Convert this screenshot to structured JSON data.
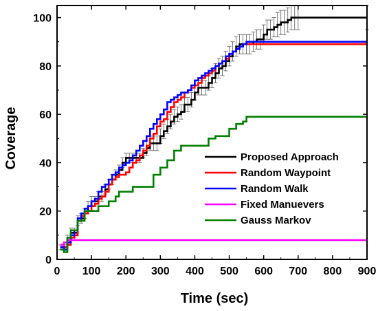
{
  "chart_data": {
    "type": "line",
    "title": "",
    "xlabel": "Time (sec)",
    "ylabel": "Coverage",
    "xlim": [
      0,
      900
    ],
    "ylim": [
      0,
      105
    ],
    "xticks": [
      0,
      100,
      200,
      300,
      400,
      500,
      600,
      700,
      800,
      900
    ],
    "yticks": [
      0,
      20,
      40,
      60,
      80,
      100
    ],
    "xtick_labels": [
      "0",
      "100",
      "200",
      "300",
      "400",
      "500",
      "600",
      "700",
      "800",
      "900"
    ],
    "ytick_labels": [
      "0",
      "20",
      "40",
      "60",
      "80",
      "100"
    ],
    "grid": false,
    "legend_position": "middle-right",
    "series": [
      {
        "name": "Proposed Approach",
        "color": "#000000",
        "error_bars": true,
        "x": [
          10,
          20,
          30,
          40,
          50,
          60,
          70,
          80,
          90,
          100,
          110,
          120,
          130,
          140,
          150,
          160,
          170,
          180,
          190,
          200,
          210,
          220,
          230,
          240,
          250,
          260,
          270,
          280,
          290,
          300,
          310,
          320,
          330,
          340,
          350,
          360,
          370,
          380,
          390,
          400,
          410,
          420,
          430,
          440,
          450,
          460,
          470,
          480,
          490,
          500,
          510,
          520,
          530,
          540,
          550,
          560,
          570,
          580,
          590,
          600,
          610,
          620,
          630,
          640,
          650,
          660,
          670,
          680,
          690,
          700,
          900
        ],
        "y": [
          5,
          5,
          8,
          11,
          11,
          16,
          17,
          19,
          22,
          24,
          24,
          26,
          26,
          29,
          31,
          33,
          35,
          37,
          40,
          42,
          42,
          42,
          42,
          42,
          44,
          46,
          48,
          48,
          48,
          51,
          53,
          55,
          57,
          59,
          60,
          61,
          64,
          64,
          66,
          69,
          71,
          71,
          71,
          73,
          75,
          77,
          79,
          80,
          82,
          84,
          86,
          88,
          89,
          89,
          89,
          89,
          90,
          91,
          91,
          93,
          95,
          95,
          96,
          97,
          98,
          98,
          99,
          100,
          100,
          100,
          100
        ],
        "error": [
          1,
          1,
          2,
          2,
          2,
          2,
          2,
          2,
          2,
          2,
          2,
          2,
          2,
          2,
          2,
          2,
          2,
          2,
          2,
          2,
          2,
          2,
          2,
          2,
          2,
          3,
          3,
          3,
          3,
          3,
          3,
          3,
          3,
          3,
          3,
          3,
          3,
          3,
          3,
          3,
          3,
          3,
          3,
          3,
          4,
          4,
          4,
          4,
          4,
          4,
          4,
          4,
          4,
          4,
          4,
          4,
          4,
          4,
          4,
          4,
          4,
          4,
          4,
          5,
          5,
          5,
          5,
          5,
          5,
          5,
          5
        ]
      },
      {
        "name": "Random Waypoint",
        "color": "#ff0000",
        "x": [
          10,
          20,
          30,
          40,
          50,
          60,
          70,
          80,
          90,
          100,
          110,
          120,
          130,
          140,
          150,
          160,
          170,
          180,
          190,
          200,
          210,
          220,
          230,
          240,
          250,
          260,
          270,
          280,
          290,
          300,
          310,
          320,
          330,
          340,
          350,
          360,
          370,
          380,
          390,
          400,
          410,
          420,
          430,
          440,
          450,
          460,
          470,
          480,
          490,
          500,
          510,
          520,
          530,
          540,
          550,
          900
        ],
        "y": [
          6,
          5,
          6,
          9,
          10,
          16,
          18,
          19,
          20,
          22,
          23,
          25,
          26,
          28,
          31,
          33,
          34,
          35,
          35,
          36,
          38,
          40,
          41,
          43,
          45,
          47,
          50,
          52,
          55,
          57,
          58,
          61,
          63,
          65,
          66,
          67,
          69,
          70,
          71,
          72,
          73,
          75,
          76,
          77,
          78,
          80,
          81,
          82,
          83,
          85,
          86,
          87,
          88,
          89,
          89,
          89
        ]
      },
      {
        "name": "Random Walk",
        "color": "#0000ff",
        "x": [
          10,
          20,
          30,
          40,
          50,
          60,
          70,
          80,
          90,
          100,
          110,
          120,
          130,
          140,
          150,
          160,
          170,
          180,
          190,
          200,
          210,
          220,
          230,
          240,
          250,
          260,
          270,
          280,
          290,
          300,
          310,
          320,
          330,
          340,
          350,
          360,
          370,
          380,
          390,
          400,
          410,
          420,
          430,
          440,
          450,
          460,
          470,
          480,
          490,
          500,
          510,
          520,
          530,
          540,
          550,
          900
        ],
        "y": [
          5,
          4,
          7,
          10,
          12,
          17,
          19,
          21,
          22,
          24,
          25,
          28,
          30,
          31,
          33,
          35,
          36,
          38,
          39,
          40,
          41,
          43,
          45,
          47,
          49,
          51,
          54,
          56,
          58,
          60,
          62,
          65,
          66,
          67,
          68,
          69,
          69,
          70,
          72,
          74,
          75,
          76,
          77,
          78,
          79,
          80,
          81,
          82,
          84,
          85,
          86,
          87,
          88,
          89,
          90,
          90
        ]
      },
      {
        "name": "Fixed Manuevers",
        "color": "#ff00ff",
        "x": [
          10,
          20,
          30,
          900
        ],
        "y": [
          6,
          7,
          8,
          8
        ]
      },
      {
        "name": "Gauss Markov",
        "color": "#008000",
        "x": [
          10,
          20,
          30,
          40,
          60,
          80,
          100,
          120,
          140,
          150,
          160,
          170,
          180,
          200,
          220,
          240,
          260,
          280,
          300,
          320,
          340,
          360,
          380,
          400,
          420,
          440,
          460,
          480,
          500,
          520,
          540,
          550,
          560,
          900
        ],
        "y": [
          4,
          3,
          9,
          12,
          16,
          20,
          20,
          22,
          22,
          24,
          24,
          26,
          28,
          28,
          30,
          30,
          30,
          35,
          38,
          41,
          45,
          47,
          47,
          47,
          47,
          50,
          51,
          51,
          54,
          56,
          57,
          59,
          59,
          59
        ]
      }
    ]
  }
}
